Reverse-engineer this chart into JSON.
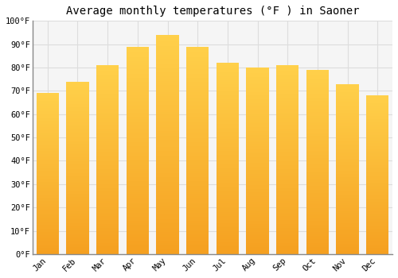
{
  "title": "Average monthly temperatures (°F ) in Saoner",
  "months": [
    "Jan",
    "Feb",
    "Mar",
    "Apr",
    "May",
    "Jun",
    "Jul",
    "Aug",
    "Sep",
    "Oct",
    "Nov",
    "Dec"
  ],
  "values": [
    69,
    74,
    81,
    89,
    94,
    89,
    82,
    80,
    81,
    79,
    73,
    68
  ],
  "bar_color_top": "#FFD04A",
  "bar_color_bottom": "#F5A020",
  "ylim": [
    0,
    100
  ],
  "yticks": [
    0,
    10,
    20,
    30,
    40,
    50,
    60,
    70,
    80,
    90,
    100
  ],
  "ytick_labels": [
    "0°F",
    "10°F",
    "20°F",
    "30°F",
    "40°F",
    "50°F",
    "60°F",
    "70°F",
    "80°F",
    "90°F",
    "100°F"
  ],
  "background_color": "#FFFFFF",
  "plot_bg_color": "#F5F5F5",
  "grid_color": "#DDDDDD",
  "title_fontsize": 10,
  "tick_fontsize": 7.5,
  "font_family": "monospace",
  "bar_width": 0.75
}
